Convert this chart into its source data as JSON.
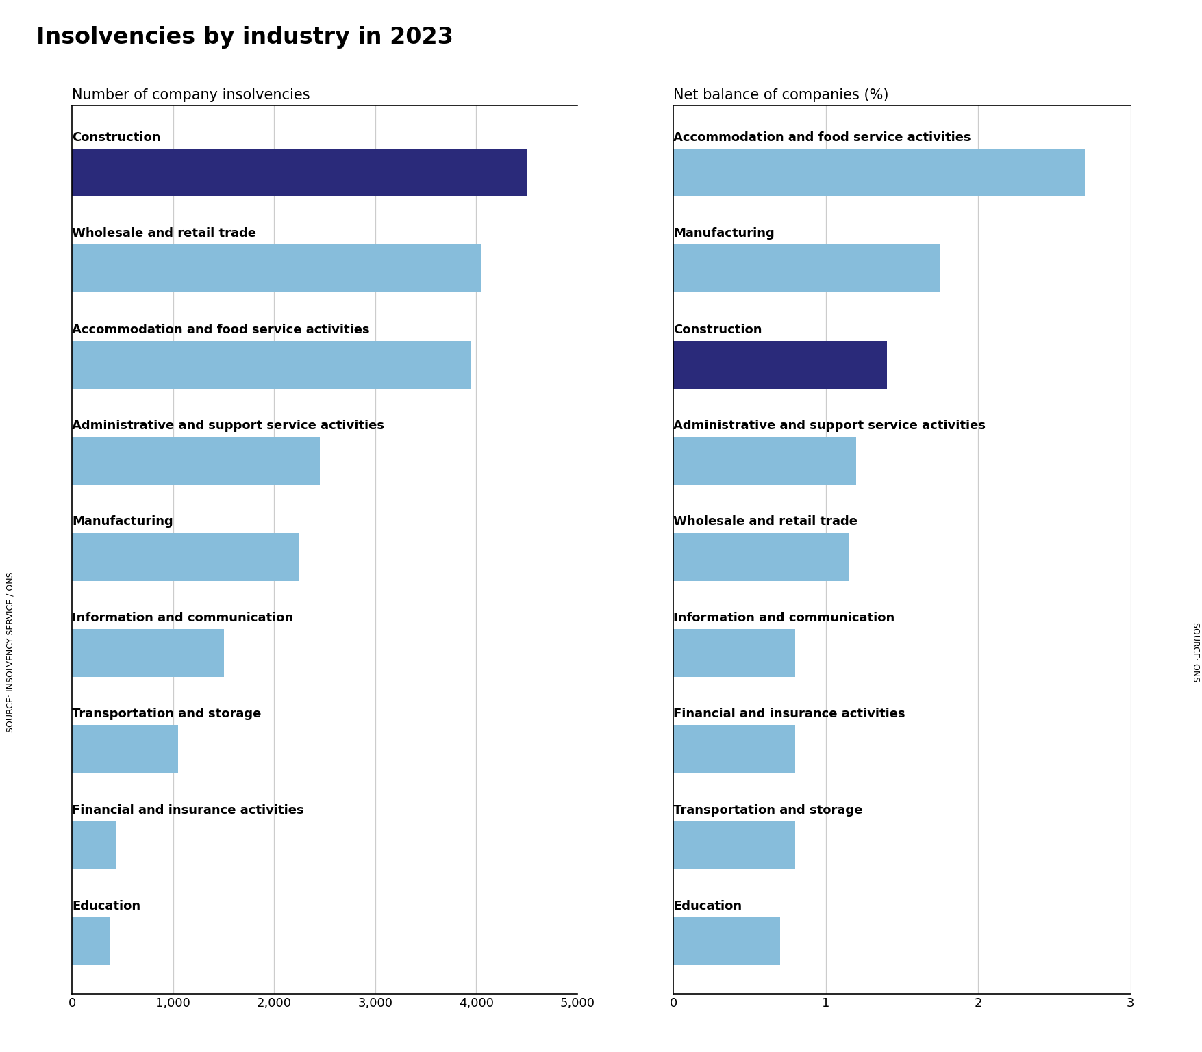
{
  "title": "Insolvencies by industry in 2023",
  "left_subtitle": "Number of company insolvencies",
  "right_subtitle": "Net balance of companies (%)",
  "left_source": "SOURCE: INSOLVENCY SERVICE / ONS",
  "right_source": "SOURCE: ONS",
  "left_categories": [
    "Construction",
    "Wholesale and retail trade",
    "Accommodation and food service activities",
    "Administrative and support service activities",
    "Manufacturing",
    "Information and communication",
    "Transportation and storage",
    "Financial and insurance activities",
    "Education"
  ],
  "left_values": [
    4500,
    4050,
    3950,
    2450,
    2250,
    1500,
    1050,
    430,
    380
  ],
  "left_highlight": "Construction",
  "left_xlim": [
    0,
    5000
  ],
  "left_xticks": [
    0,
    1000,
    2000,
    3000,
    4000,
    5000
  ],
  "left_xticklabels": [
    "0",
    "1,000",
    "2,000",
    "3,000",
    "4,000",
    "5,000"
  ],
  "right_categories": [
    "Accommodation and food service activities",
    "Manufacturing",
    "Construction",
    "Administrative and support service activities",
    "Wholesale and retail trade",
    "Information and communication",
    "Financial and insurance activities",
    "Transportation and storage",
    "Education"
  ],
  "right_values": [
    2.7,
    1.75,
    1.4,
    1.2,
    1.15,
    0.8,
    0.8,
    0.8,
    0.7
  ],
  "right_highlight": "Construction",
  "right_xlim": [
    0,
    3
  ],
  "right_xticks": [
    0,
    1,
    2,
    3
  ],
  "right_xticklabels": [
    "0",
    "1",
    "2",
    "3"
  ],
  "highlight_color": "#2a2a7a",
  "normal_color": "#87BDDB",
  "background_color": "#ffffff",
  "title_fontsize": 24,
  "subtitle_fontsize": 15,
  "label_fontsize": 13,
  "tick_fontsize": 13,
  "source_fontsize": 9,
  "bar_height": 0.5
}
